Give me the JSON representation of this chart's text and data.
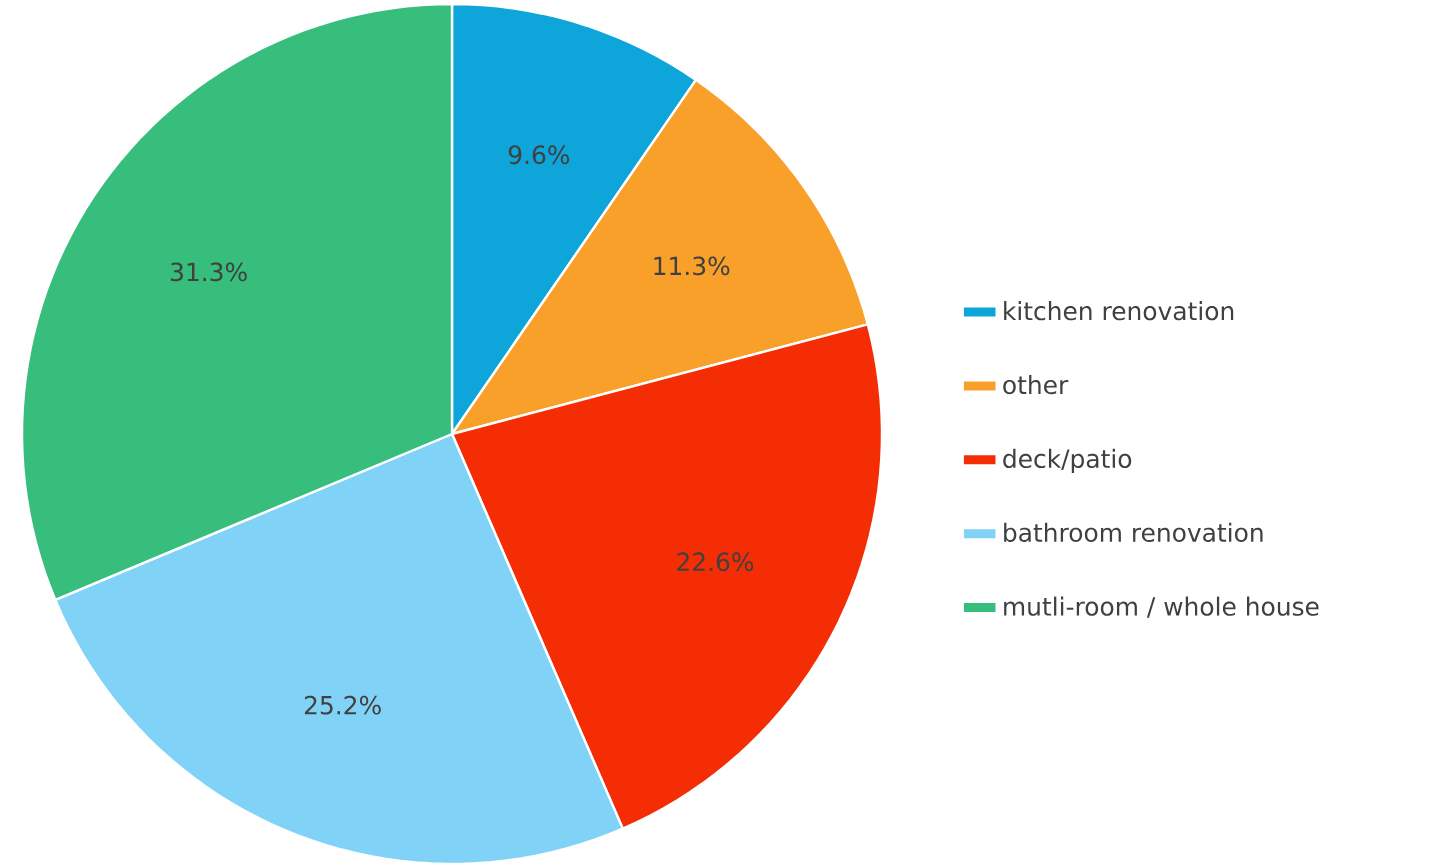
{
  "chart_data": {
    "type": "pie",
    "categories": [
      "kitchen renovation",
      "other",
      "deck/patio",
      "bathroom renovation",
      "mutli-room / whole house"
    ],
    "values": [
      9.6,
      11.3,
      22.6,
      25.2,
      31.3
    ],
    "value_labels": [
      "9.6%",
      "11.3%",
      "22.6%",
      "25.2%",
      "31.3%"
    ],
    "colors": [
      "#0ea5db",
      "#f9a02a",
      "#f42d05",
      "#80d3f6",
      "#37bd7c"
    ],
    "legend": "right"
  }
}
